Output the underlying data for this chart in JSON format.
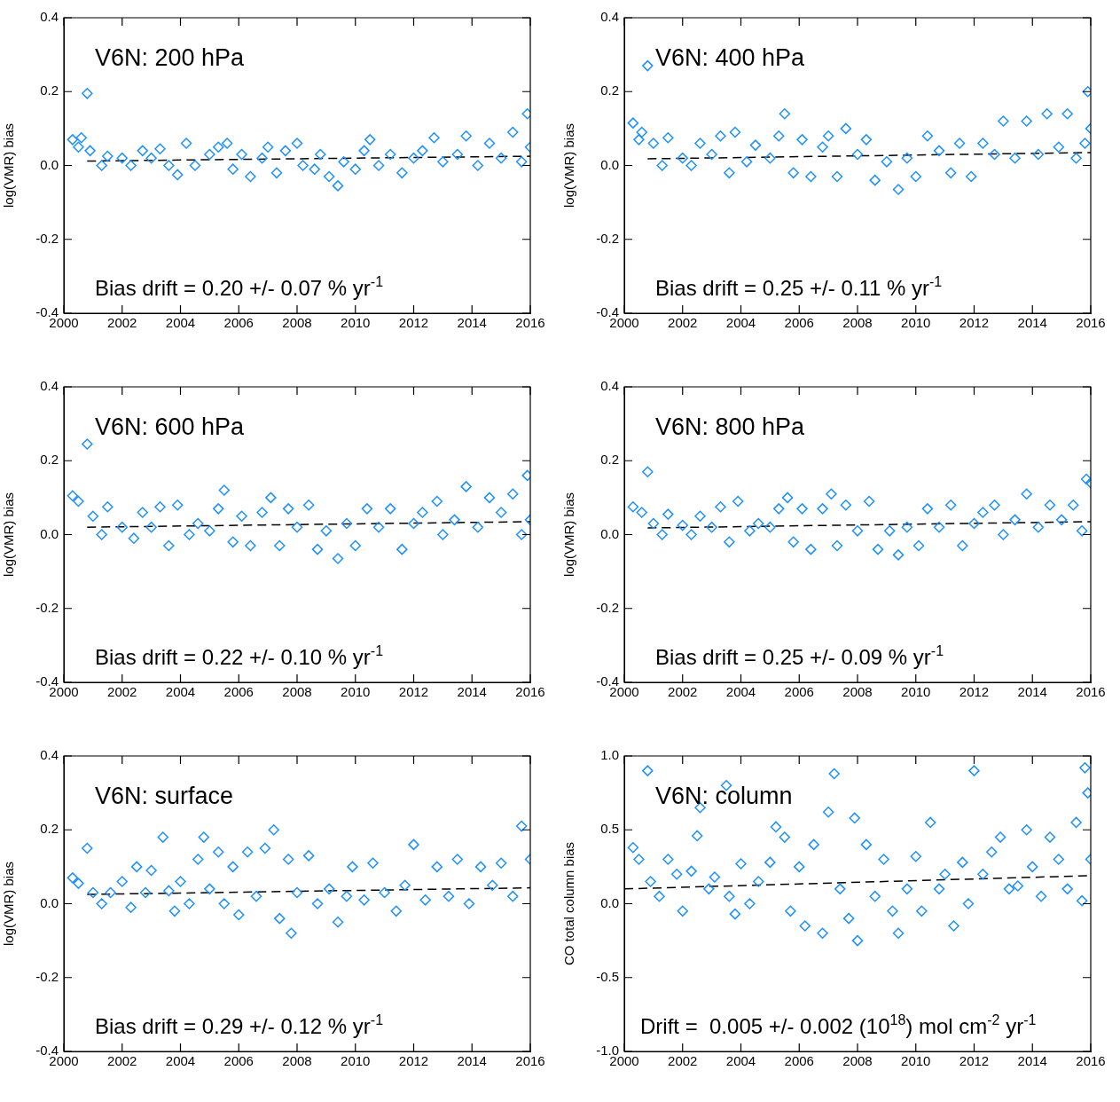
{
  "chart_data": [
    {
      "type": "scatter",
      "title": "V6N: 200 hPa",
      "ylabel": "log(VMR) bias",
      "annotations": [
        "Bias drift = 0.20 +/- 0.07 % yr$^{-1}$"
      ],
      "xlim": [
        2000,
        2016
      ],
      "xticks": [
        2000,
        2002,
        2004,
        2006,
        2008,
        2010,
        2012,
        2014,
        2016
      ],
      "ylim": [
        -0.4,
        0.4
      ],
      "yticks": [
        {
          "value": -0.4,
          "label": "-0.4"
        },
        {
          "value": -0.2,
          "label": "-0.2"
        },
        {
          "value": 0,
          "label": "0.0"
        },
        {
          "value": 0.2,
          "label": "0.2"
        },
        {
          "value": 0.4,
          "label": "0.4"
        }
      ],
      "grid": false,
      "marker": "diamond",
      "series": [
        {
          "color": "#1e90ff",
          "x": [
            2000.3,
            2000.5,
            2000.6,
            2000.8,
            2000.9,
            2001.3,
            2001.5,
            2002.0,
            2002.3,
            2002.7,
            2003.0,
            2003.3,
            2003.6,
            2003.9,
            2004.2,
            2004.5,
            2005.0,
            2005.3,
            2005.6,
            2005.8,
            2006.1,
            2006.4,
            2006.8,
            2007.0,
            2007.3,
            2007.6,
            2008.0,
            2008.2,
            2008.6,
            2008.8,
            2009.1,
            2009.4,
            2009.6,
            2010.0,
            2010.3,
            2010.5,
            2010.8,
            2011.2,
            2011.6,
            2012.0,
            2012.3,
            2012.7,
            2013.0,
            2013.5,
            2013.8,
            2014.2,
            2014.6,
            2015.0,
            2015.4,
            2015.7,
            2015.9,
            2016.0
          ],
          "values": [
            0.07,
            0.05,
            0.075,
            0.195,
            0.04,
            0.0,
            0.025,
            0.02,
            0.0,
            0.04,
            0.02,
            0.045,
            0.0,
            -0.025,
            0.06,
            0.0,
            0.03,
            0.05,
            0.06,
            -0.01,
            0.03,
            -0.03,
            0.02,
            0.05,
            -0.02,
            0.04,
            0.06,
            0.0,
            -0.01,
            0.03,
            -0.03,
            -0.055,
            0.01,
            -0.01,
            0.04,
            0.07,
            0.0,
            0.03,
            -0.02,
            0.02,
            0.04,
            0.075,
            0.01,
            0.03,
            0.08,
            0.0,
            0.06,
            0.02,
            0.09,
            0.01,
            0.14,
            0.05
          ]
        },
        {
          "type": "line",
          "color": "#000000",
          "line_style": "dashed",
          "marker": "none",
          "x": [
            2000.8,
            2016
          ],
          "values": [
            0.012,
            0.025
          ]
        }
      ]
    },
    {
      "type": "scatter",
      "title": "V6N: 400 hPa",
      "ylabel": "log(VMR) bias",
      "annotations": [
        "Bias drift = 0.25 +/- 0.11 % yr$^{-1}$"
      ],
      "xlim": [
        2000,
        2016
      ],
      "xticks": [
        2000,
        2002,
        2004,
        2006,
        2008,
        2010,
        2012,
        2014,
        2016
      ],
      "ylim": [
        -0.4,
        0.4
      ],
      "yticks": [
        {
          "value": -0.4,
          "label": "-0.4"
        },
        {
          "value": -0.2,
          "label": "-0.2"
        },
        {
          "value": 0,
          "label": "0.0"
        },
        {
          "value": 0.2,
          "label": "0.2"
        },
        {
          "value": 0.4,
          "label": "0.4"
        }
      ],
      "grid": false,
      "marker": "diamond",
      "series": [
        {
          "color": "#1e90ff",
          "x": [
            2000.3,
            2000.5,
            2000.6,
            2000.8,
            2001.0,
            2001.3,
            2001.5,
            2002.0,
            2002.3,
            2002.6,
            2003.0,
            2003.3,
            2003.6,
            2003.8,
            2004.2,
            2004.5,
            2005.0,
            2005.3,
            2005.5,
            2005.8,
            2006.1,
            2006.4,
            2006.8,
            2007.0,
            2007.3,
            2007.6,
            2008.0,
            2008.3,
            2008.6,
            2009.0,
            2009.4,
            2009.7,
            2010.0,
            2010.4,
            2010.8,
            2011.2,
            2011.5,
            2011.9,
            2012.3,
            2012.7,
            2013.0,
            2013.4,
            2013.8,
            2014.2,
            2014.5,
            2014.9,
            2015.2,
            2015.5,
            2015.8,
            2015.9,
            2016.0
          ],
          "values": [
            0.115,
            0.07,
            0.09,
            0.27,
            0.06,
            0.0,
            0.075,
            0.02,
            0.0,
            0.06,
            0.03,
            0.08,
            -0.02,
            0.09,
            0.01,
            0.055,
            0.02,
            0.08,
            0.14,
            -0.02,
            0.07,
            -0.03,
            0.05,
            0.08,
            -0.03,
            0.1,
            0.03,
            0.07,
            -0.04,
            0.01,
            -0.065,
            0.02,
            -0.03,
            0.08,
            0.04,
            -0.02,
            0.06,
            -0.03,
            0.06,
            0.03,
            0.12,
            0.02,
            0.12,
            0.03,
            0.14,
            0.05,
            0.14,
            0.02,
            0.06,
            0.2,
            0.1
          ]
        },
        {
          "type": "line",
          "color": "#000000",
          "line_style": "dashed",
          "marker": "none",
          "x": [
            2000.8,
            2016
          ],
          "values": [
            0.018,
            0.035
          ]
        }
      ]
    },
    {
      "type": "scatter",
      "title": "V6N: 600 hPa",
      "ylabel": "log(VMR) bias",
      "annotations": [
        "Bias drift = 0.22 +/- 0.10 % yr$^{-1}$"
      ],
      "xlim": [
        2000,
        2016
      ],
      "xticks": [
        2000,
        2002,
        2004,
        2006,
        2008,
        2010,
        2012,
        2014,
        2016
      ],
      "ylim": [
        -0.4,
        0.4
      ],
      "yticks": [
        {
          "value": -0.4,
          "label": "-0.4"
        },
        {
          "value": -0.2,
          "label": "-0.2"
        },
        {
          "value": 0,
          "label": "0.0"
        },
        {
          "value": 0.2,
          "label": "0.2"
        },
        {
          "value": 0.4,
          "label": "0.4"
        }
      ],
      "grid": false,
      "marker": "diamond",
      "series": [
        {
          "color": "#1e90ff",
          "x": [
            2000.3,
            2000.5,
            2000.8,
            2001.0,
            2001.3,
            2001.5,
            2002.0,
            2002.4,
            2002.7,
            2003.0,
            2003.3,
            2003.6,
            2003.9,
            2004.3,
            2004.6,
            2005.0,
            2005.3,
            2005.5,
            2005.8,
            2006.1,
            2006.4,
            2006.8,
            2007.1,
            2007.4,
            2007.7,
            2008.0,
            2008.4,
            2008.7,
            2009.0,
            2009.4,
            2009.7,
            2010.0,
            2010.4,
            2010.8,
            2011.2,
            2011.6,
            2012.0,
            2012.3,
            2012.8,
            2013.0,
            2013.4,
            2013.8,
            2014.2,
            2014.6,
            2015.0,
            2015.4,
            2015.7,
            2015.9,
            2016.0
          ],
          "values": [
            0.105,
            0.09,
            0.245,
            0.05,
            0.0,
            0.075,
            0.02,
            -0.01,
            0.06,
            0.02,
            0.075,
            -0.03,
            0.08,
            0.0,
            0.03,
            0.01,
            0.07,
            0.12,
            -0.02,
            0.05,
            -0.03,
            0.06,
            0.1,
            -0.03,
            0.07,
            0.02,
            0.08,
            -0.04,
            0.01,
            -0.065,
            0.03,
            -0.03,
            0.07,
            0.02,
            0.07,
            -0.04,
            0.03,
            0.06,
            0.09,
            0.0,
            0.04,
            0.13,
            0.02,
            0.1,
            0.06,
            0.11,
            0.0,
            0.16,
            0.04
          ]
        },
        {
          "type": "line",
          "color": "#000000",
          "line_style": "dashed",
          "marker": "none",
          "x": [
            2000.8,
            2016
          ],
          "values": [
            0.02,
            0.035
          ]
        }
      ]
    },
    {
      "type": "scatter",
      "title": "V6N: 800 hPa",
      "ylabel": "log(VMR) bias",
      "annotations": [
        "Bias drift = 0.25 +/- 0.09 % yr$^{-1}$"
      ],
      "xlim": [
        2000,
        2016
      ],
      "xticks": [
        2000,
        2002,
        2004,
        2006,
        2008,
        2010,
        2012,
        2014,
        2016
      ],
      "ylim": [
        -0.4,
        0.4
      ],
      "yticks": [
        {
          "value": -0.4,
          "label": "-0.4"
        },
        {
          "value": -0.2,
          "label": "-0.2"
        },
        {
          "value": 0,
          "label": "0.0"
        },
        {
          "value": 0.2,
          "label": "0.2"
        },
        {
          "value": 0.4,
          "label": "0.4"
        }
      ],
      "grid": false,
      "marker": "diamond",
      "series": [
        {
          "color": "#1e90ff",
          "x": [
            2000.3,
            2000.6,
            2000.8,
            2001.0,
            2001.3,
            2001.5,
            2002.0,
            2002.3,
            2002.6,
            2003.0,
            2003.3,
            2003.6,
            2003.9,
            2004.3,
            2004.6,
            2005.0,
            2005.3,
            2005.6,
            2005.8,
            2006.1,
            2006.4,
            2006.8,
            2007.1,
            2007.3,
            2007.6,
            2008.0,
            2008.4,
            2008.7,
            2009.1,
            2009.4,
            2009.7,
            2010.1,
            2010.4,
            2010.8,
            2011.2,
            2011.6,
            2012.0,
            2012.3,
            2012.7,
            2013.0,
            2013.4,
            2013.8,
            2014.2,
            2014.6,
            2015.0,
            2015.4,
            2015.7,
            2015.85,
            2016.0
          ],
          "values": [
            0.075,
            0.06,
            0.17,
            0.03,
            0.0,
            0.055,
            0.025,
            0.0,
            0.05,
            0.02,
            0.075,
            -0.02,
            0.09,
            0.01,
            0.03,
            0.02,
            0.07,
            0.1,
            -0.02,
            0.07,
            -0.04,
            0.07,
            0.11,
            -0.03,
            0.08,
            0.01,
            0.09,
            -0.04,
            0.01,
            -0.055,
            0.02,
            -0.03,
            0.07,
            0.02,
            0.08,
            -0.03,
            0.03,
            0.06,
            0.08,
            0.0,
            0.04,
            0.11,
            0.02,
            0.08,
            0.04,
            0.08,
            0.01,
            0.15,
            0.14
          ]
        },
        {
          "type": "line",
          "color": "#000000",
          "line_style": "dashed",
          "marker": "none",
          "x": [
            2000.8,
            2016
          ],
          "values": [
            0.018,
            0.035
          ]
        }
      ]
    },
    {
      "type": "scatter",
      "title": "V6N: surface",
      "ylabel": "log(VMR) bias",
      "annotations": [
        "Bias drift = 0.29 +/- 0.12 % yr$^{-1}$"
      ],
      "xlim": [
        2000,
        2016
      ],
      "xticks": [
        2000,
        2002,
        2004,
        2006,
        2008,
        2010,
        2012,
        2014,
        2016
      ],
      "ylim": [
        -0.4,
        0.4
      ],
      "yticks": [
        {
          "value": -0.4,
          "label": "-0.4"
        },
        {
          "value": -0.2,
          "label": "-0.2"
        },
        {
          "value": 0,
          "label": "0.0"
        },
        {
          "value": 0.2,
          "label": "0.2"
        },
        {
          "value": 0.4,
          "label": "0.4"
        }
      ],
      "grid": false,
      "marker": "diamond",
      "series": [
        {
          "color": "#1e90ff",
          "x": [
            2000.3,
            2000.5,
            2000.8,
            2001.0,
            2001.3,
            2001.6,
            2002.0,
            2002.3,
            2002.5,
            2002.8,
            2003.0,
            2003.4,
            2003.6,
            2003.8,
            2004.0,
            2004.3,
            2004.6,
            2004.8,
            2005.0,
            2005.3,
            2005.5,
            2005.8,
            2006.0,
            2006.3,
            2006.6,
            2006.9,
            2007.2,
            2007.4,
            2007.7,
            2007.8,
            2008.0,
            2008.4,
            2008.7,
            2009.1,
            2009.4,
            2009.7,
            2009.9,
            2010.3,
            2010.6,
            2011.0,
            2011.4,
            2011.7,
            2012.0,
            2012.4,
            2012.8,
            2013.2,
            2013.5,
            2013.9,
            2014.3,
            2014.7,
            2015.0,
            2015.4,
            2015.7,
            2016.0
          ],
          "values": [
            0.07,
            0.055,
            0.15,
            0.03,
            0.0,
            0.03,
            0.06,
            -0.01,
            0.1,
            0.03,
            0.09,
            0.18,
            0.035,
            -0.02,
            0.06,
            0.0,
            0.12,
            0.18,
            0.04,
            0.14,
            0.0,
            0.1,
            -0.03,
            0.14,
            0.02,
            0.15,
            0.2,
            -0.04,
            0.12,
            -0.08,
            0.03,
            0.13,
            0.0,
            0.04,
            -0.05,
            0.02,
            0.1,
            0.01,
            0.11,
            0.03,
            -0.02,
            0.05,
            0.16,
            0.01,
            0.1,
            0.02,
            0.12,
            0.0,
            0.1,
            0.05,
            0.11,
            0.02,
            0.21,
            0.12
          ]
        },
        {
          "type": "line",
          "color": "#000000",
          "line_style": "dashed",
          "marker": "none",
          "x": [
            2000.8,
            2016
          ],
          "values": [
            0.025,
            0.043
          ]
        }
      ]
    },
    {
      "type": "scatter",
      "title": "V6N: column",
      "ylabel": "CO total column bias",
      "annotations": [
        "Drift =  0.005 +/- 0.002 (10$^{18}$) mol cm$^{-2}$ yr$^{-1}$"
      ],
      "xlim": [
        2000,
        2016
      ],
      "xticks": [
        2000,
        2002,
        2004,
        2006,
        2008,
        2010,
        2012,
        2014,
        2016
      ],
      "ylim": [
        -1,
        1
      ],
      "yticks": [
        {
          "value": -1,
          "label": "-1.0"
        },
        {
          "value": -0.5,
          "label": "-0.5"
        },
        {
          "value": 0,
          "label": "0.0"
        },
        {
          "value": 0.5,
          "label": "0.5"
        },
        {
          "value": 1,
          "label": "1.0"
        }
      ],
      "grid": false,
      "marker": "diamond",
      "series": [
        {
          "color": "#1e90ff",
          "x": [
            2000.3,
            2000.5,
            2000.8,
            2000.9,
            2001.2,
            2001.5,
            2001.8,
            2002.0,
            2002.3,
            2002.5,
            2002.6,
            2002.9,
            2003.1,
            2003.5,
            2003.6,
            2003.8,
            2004.0,
            2004.3,
            2004.6,
            2005.0,
            2005.2,
            2005.5,
            2005.7,
            2006.0,
            2006.2,
            2006.5,
            2006.8,
            2007.0,
            2007.2,
            2007.4,
            2007.7,
            2007.9,
            2008.0,
            2008.3,
            2008.6,
            2008.9,
            2009.2,
            2009.4,
            2009.7,
            2010.0,
            2010.2,
            2010.5,
            2010.8,
            2011.0,
            2011.3,
            2011.6,
            2011.8,
            2012.0,
            2012.3,
            2012.6,
            2012.9,
            2013.2,
            2013.5,
            2013.8,
            2014.0,
            2014.3,
            2014.6,
            2014.9,
            2015.2,
            2015.5,
            2015.7,
            2015.8,
            2015.9,
            2016.0
          ],
          "values": [
            0.38,
            0.3,
            0.9,
            0.15,
            0.05,
            0.3,
            0.2,
            -0.05,
            0.22,
            0.46,
            0.65,
            0.1,
            0.18,
            0.8,
            0.05,
            -0.07,
            0.27,
            0.0,
            0.15,
            0.28,
            0.52,
            0.45,
            -0.05,
            0.25,
            -0.15,
            0.4,
            -0.2,
            0.62,
            0.88,
            0.1,
            -0.1,
            0.58,
            -0.25,
            0.4,
            0.05,
            0.3,
            -0.05,
            -0.2,
            0.1,
            0.32,
            -0.05,
            0.55,
            0.1,
            0.2,
            -0.15,
            0.28,
            0.0,
            0.9,
            0.2,
            0.35,
            0.45,
            0.1,
            0.12,
            0.5,
            0.25,
            0.05,
            0.45,
            0.3,
            0.1,
            0.55,
            0.02,
            0.92,
            0.75,
            0.3
          ]
        },
        {
          "type": "line",
          "color": "#000000",
          "line_style": "dashed",
          "marker": "none",
          "x": [
            2000,
            2016
          ],
          "values": [
            0.1,
            0.19
          ]
        }
      ]
    }
  ]
}
